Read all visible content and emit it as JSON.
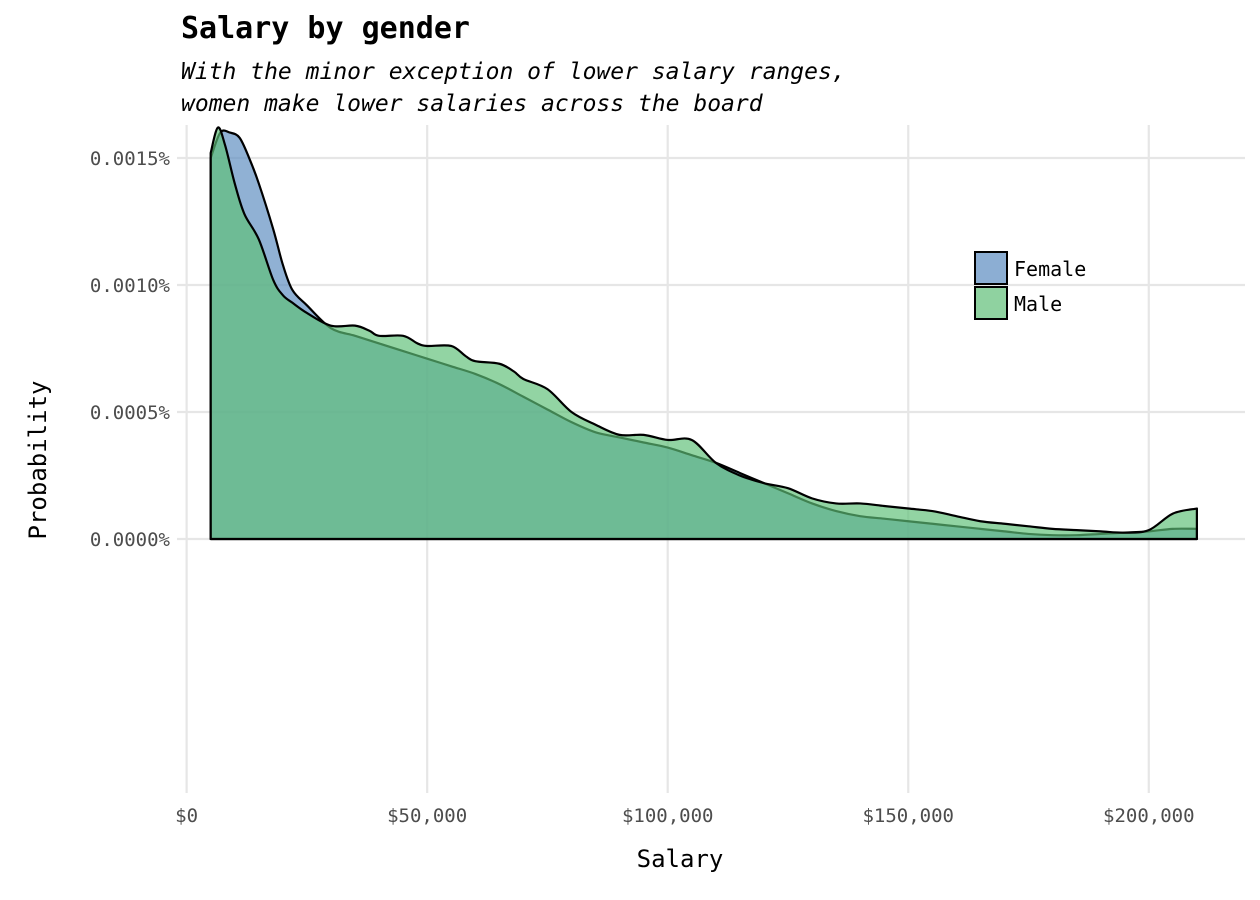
{
  "chart_data": {
    "type": "area",
    "title": "Salary by gender",
    "subtitle_lines": [
      "With the minor exception of lower salary ranges,",
      "women make lower salaries across the board"
    ],
    "xlabel": "Salary",
    "ylabel": "Probability",
    "xlim": [
      -2000,
      220000
    ],
    "ylim": [
      -1e-06,
      1.63e-06
    ],
    "x_ticks": [
      0,
      50000,
      100000,
      150000,
      200000
    ],
    "x_tick_labels": [
      "$0",
      "$50,000",
      "$100,000",
      "$150,000",
      "$200,000"
    ],
    "y_ticks": [
      0,
      5e-07,
      1e-06,
      1.5e-06
    ],
    "y_tick_labels": [
      "0.0000%",
      "0.0005%",
      "0.0010%",
      "0.0015%"
    ],
    "grid": true,
    "legend_position": "top-right",
    "series": [
      {
        "name": "Female",
        "color": "#5b8cc0",
        "x": [
          5000,
          7000,
          9000,
          11000,
          13000,
          15000,
          18000,
          20000,
          22000,
          25000,
          30000,
          35000,
          40000,
          45000,
          50000,
          55000,
          60000,
          65000,
          70000,
          75000,
          80000,
          85000,
          90000,
          95000,
          100000,
          105000,
          110000,
          115000,
          120000,
          125000,
          130000,
          135000,
          140000,
          145000,
          150000,
          155000,
          160000,
          165000,
          170000,
          175000,
          180000,
          185000,
          190000,
          195000,
          200000,
          205000,
          210000
        ],
        "y": [
          1.5e-06,
          1.6e-06,
          1.6e-06,
          1.58e-06,
          1.5e-06,
          1.4e-06,
          1.22e-06,
          1.08e-06,
          9.8e-07,
          9.2e-07,
          8.3e-07,
          8e-07,
          7.7e-07,
          7.4e-07,
          7.1e-07,
          6.8e-07,
          6.5e-07,
          6.1e-07,
          5.6e-07,
          5.1e-07,
          4.6e-07,
          4.2e-07,
          4e-07,
          3.8e-07,
          3.6e-07,
          3.3e-07,
          3e-07,
          2.6e-07,
          2.2e-07,
          1.8e-07,
          1.4e-07,
          1.1e-07,
          9e-08,
          8e-08,
          7e-08,
          6e-08,
          5e-08,
          4e-08,
          3e-08,
          2e-08,
          1.5e-08,
          1.5e-08,
          2e-08,
          2.5e-08,
          3e-08,
          4e-08,
          4e-08
        ]
      },
      {
        "name": "Male",
        "color": "#5fbf78",
        "x": [
          5000,
          6500,
          8000,
          10000,
          12000,
          15000,
          18000,
          20000,
          22000,
          25000,
          30000,
          35000,
          38000,
          40000,
          45000,
          48000,
          50000,
          55000,
          58000,
          60000,
          65000,
          68000,
          70000,
          75000,
          80000,
          85000,
          90000,
          95000,
          100000,
          105000,
          110000,
          115000,
          120000,
          125000,
          130000,
          135000,
          140000,
          145000,
          150000,
          155000,
          160000,
          165000,
          170000,
          175000,
          180000,
          185000,
          190000,
          195000,
          200000,
          205000,
          210000
        ],
        "y": [
          1.52e-06,
          1.62e-06,
          1.55e-06,
          1.4e-06,
          1.28e-06,
          1.18e-06,
          1.02e-06,
          9.6e-07,
          9.3e-07,
          8.9e-07,
          8.4e-07,
          8.4e-07,
          8.2e-07,
          8e-07,
          8e-07,
          7.7e-07,
          7.6e-07,
          7.6e-07,
          7.2e-07,
          7e-07,
          6.9e-07,
          6.6e-07,
          6.3e-07,
          5.9e-07,
          5e-07,
          4.5e-07,
          4.1e-07,
          4.1e-07,
          3.9e-07,
          3.9e-07,
          3e-07,
          2.5e-07,
          2.2e-07,
          2e-07,
          1.6e-07,
          1.4e-07,
          1.4e-07,
          1.3e-07,
          1.2e-07,
          1.1e-07,
          9e-08,
          7e-08,
          6e-08,
          5e-08,
          4e-08,
          3.5e-08,
          3e-08,
          2.5e-08,
          3.5e-08,
          1e-07,
          1.2e-07
        ]
      }
    ]
  }
}
